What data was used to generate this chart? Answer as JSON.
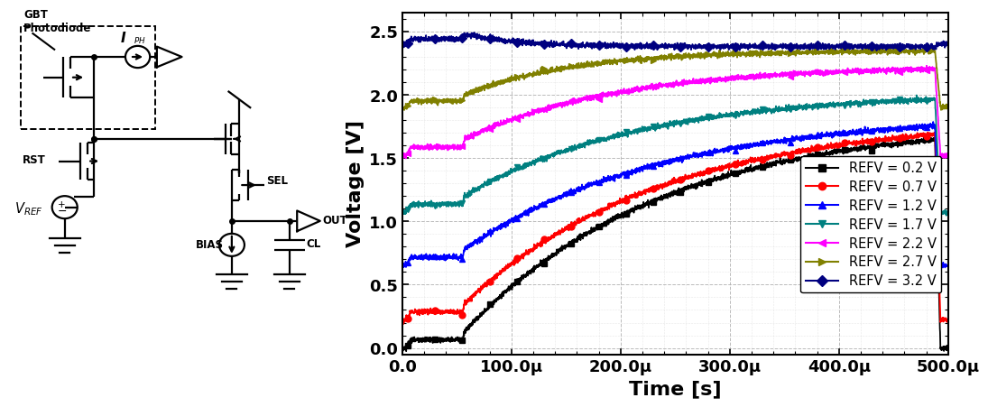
{
  "xlabel": "Time [s]",
  "ylabel": "Voltage [V]",
  "xlim": [
    0,
    0.0005
  ],
  "ylim": [
    -0.05,
    2.65
  ],
  "xticks": [
    0,
    0.0001,
    0.0002,
    0.0003,
    0.0004,
    0.0005
  ],
  "xtick_labels": [
    "0.0",
    "100.0μ",
    "200.0μ",
    "300.0μ",
    "400.0μ",
    "500.0μ"
  ],
  "yticks": [
    0.0,
    0.5,
    1.0,
    1.5,
    2.0,
    2.5
  ],
  "series": [
    {
      "label": "REFV = 0.2 V",
      "color": "#000000",
      "marker": "s",
      "refv": 0.2,
      "phase1_v": 0.0,
      "phase2_v": 0.13,
      "steady": 1.8,
      "tau": 0.00018
    },
    {
      "label": "REFV = 0.7 V",
      "color": "#ff0000",
      "marker": "o",
      "refv": 0.7,
      "phase1_v": 0.22,
      "phase2_v": 0.35,
      "steady": 1.82,
      "tau": 0.00018
    },
    {
      "label": "REFV = 1.2 V",
      "color": "#0000ff",
      "marker": "^",
      "refv": 1.2,
      "phase1_v": 0.65,
      "phase2_v": 0.78,
      "steady": 1.85,
      "tau": 0.00018
    },
    {
      "label": "REFV = 1.7 V",
      "color": "#008080",
      "marker": "v",
      "refv": 1.7,
      "phase1_v": 1.07,
      "phase2_v": 1.2,
      "steady": 2.02,
      "tau": 0.00016
    },
    {
      "label": "REFV = 2.2 V",
      "color": "#ff00ff",
      "marker": "<",
      "refv": 2.2,
      "phase1_v": 1.52,
      "phase2_v": 1.65,
      "steady": 2.23,
      "tau": 0.00014
    },
    {
      "label": "REFV = 2.7 V",
      "color": "#808000",
      "marker": ">",
      "refv": 2.7,
      "phase1_v": 1.9,
      "phase2_v": 2.0,
      "steady": 2.35,
      "tau": 0.0001
    },
    {
      "label": "REFV = 3.2 V",
      "color": "#000080",
      "marker": "D",
      "refv": 3.2,
      "phase1_v": 2.4,
      "phase2_v": 2.48,
      "steady": 2.38,
      "tau": 5e-05
    }
  ],
  "grid_color": "#aaaaaa",
  "bg_color": "#ffffff",
  "axis_label_fontsize": 16,
  "tick_fontsize": 13,
  "legend_fontsize": 10.5
}
